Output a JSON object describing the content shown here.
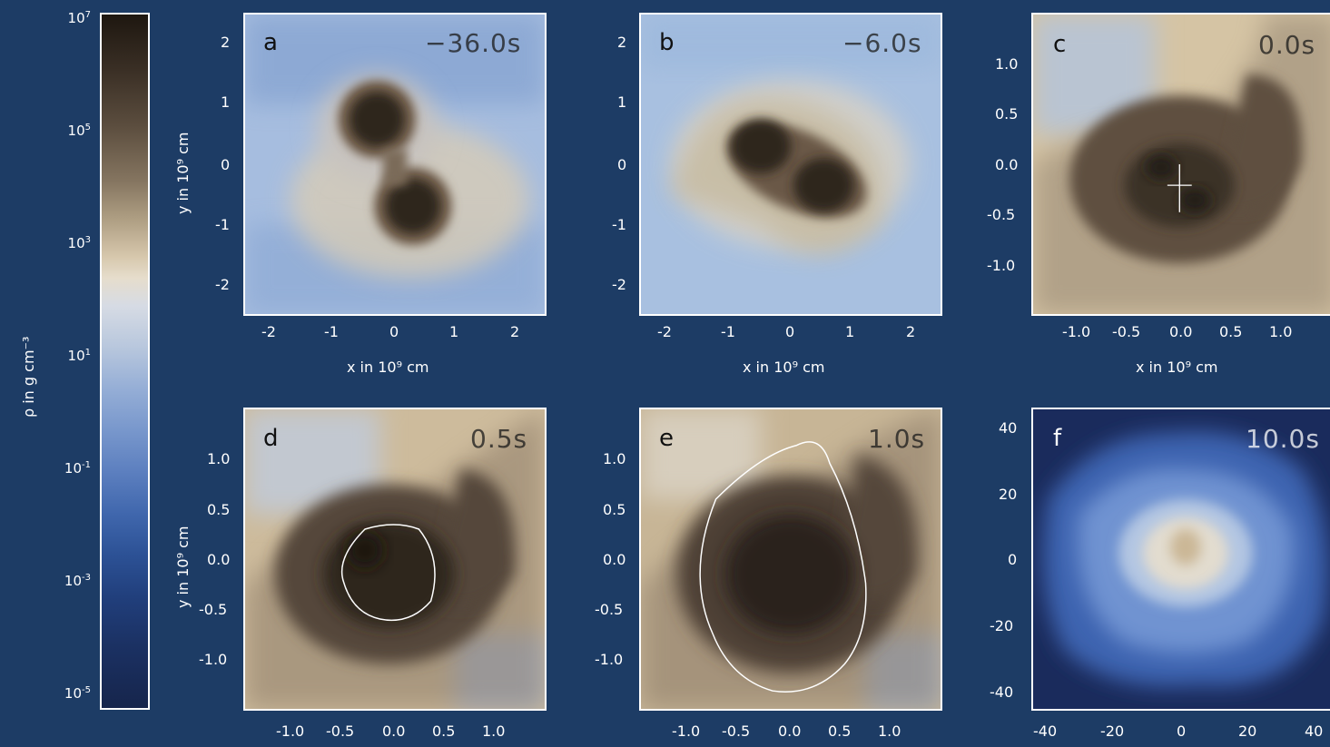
{
  "colorbar": {
    "title": "ρ in g cm⁻³",
    "labels": [
      {
        "base": "10",
        "exp": "7"
      },
      {
        "base": "10",
        "exp": "5"
      },
      {
        "base": "10",
        "exp": "3"
      },
      {
        "base": "10",
        "exp": "1"
      },
      {
        "base": "10",
        "exp": "-1"
      },
      {
        "base": "10",
        "exp": "-3"
      },
      {
        "base": "10",
        "exp": "-5"
      }
    ]
  },
  "axes": {
    "x_title": "x in 10⁹ cm",
    "y_title": "y in 10⁹ cm",
    "ticks_wide": [
      "2",
      "1",
      "0",
      "-1",
      "-2"
    ],
    "ticks_wide_x": [
      "-2",
      "-1",
      "0",
      "1",
      "2"
    ],
    "ticks_fine": [
      "1.0",
      "0.5",
      "0.0",
      "-0.5",
      "-1.0"
    ],
    "ticks_fine_x": [
      "-1.0",
      "-0.5",
      "0.0",
      "0.5",
      "1.0"
    ],
    "ticks_large": [
      "40",
      "20",
      "0",
      "-20",
      "-40"
    ],
    "ticks_large_x": [
      "-40",
      "-20",
      "0",
      "20",
      "40"
    ]
  },
  "panels": [
    {
      "letter": "a",
      "time": "−36.0s"
    },
    {
      "letter": "b",
      "time": "−6.0s"
    },
    {
      "letter": "c",
      "time": "0.0s"
    },
    {
      "letter": "d",
      "time": "0.5s"
    },
    {
      "letter": "e",
      "time": "1.0s"
    },
    {
      "letter": "f",
      "time": "10.0s"
    }
  ],
  "colors": {
    "background": "#1d3c65",
    "dense": "#2a2119",
    "mid": "#d9c8aa",
    "low": "#a9bfde",
    "vacuum": "#2e4a8c"
  }
}
